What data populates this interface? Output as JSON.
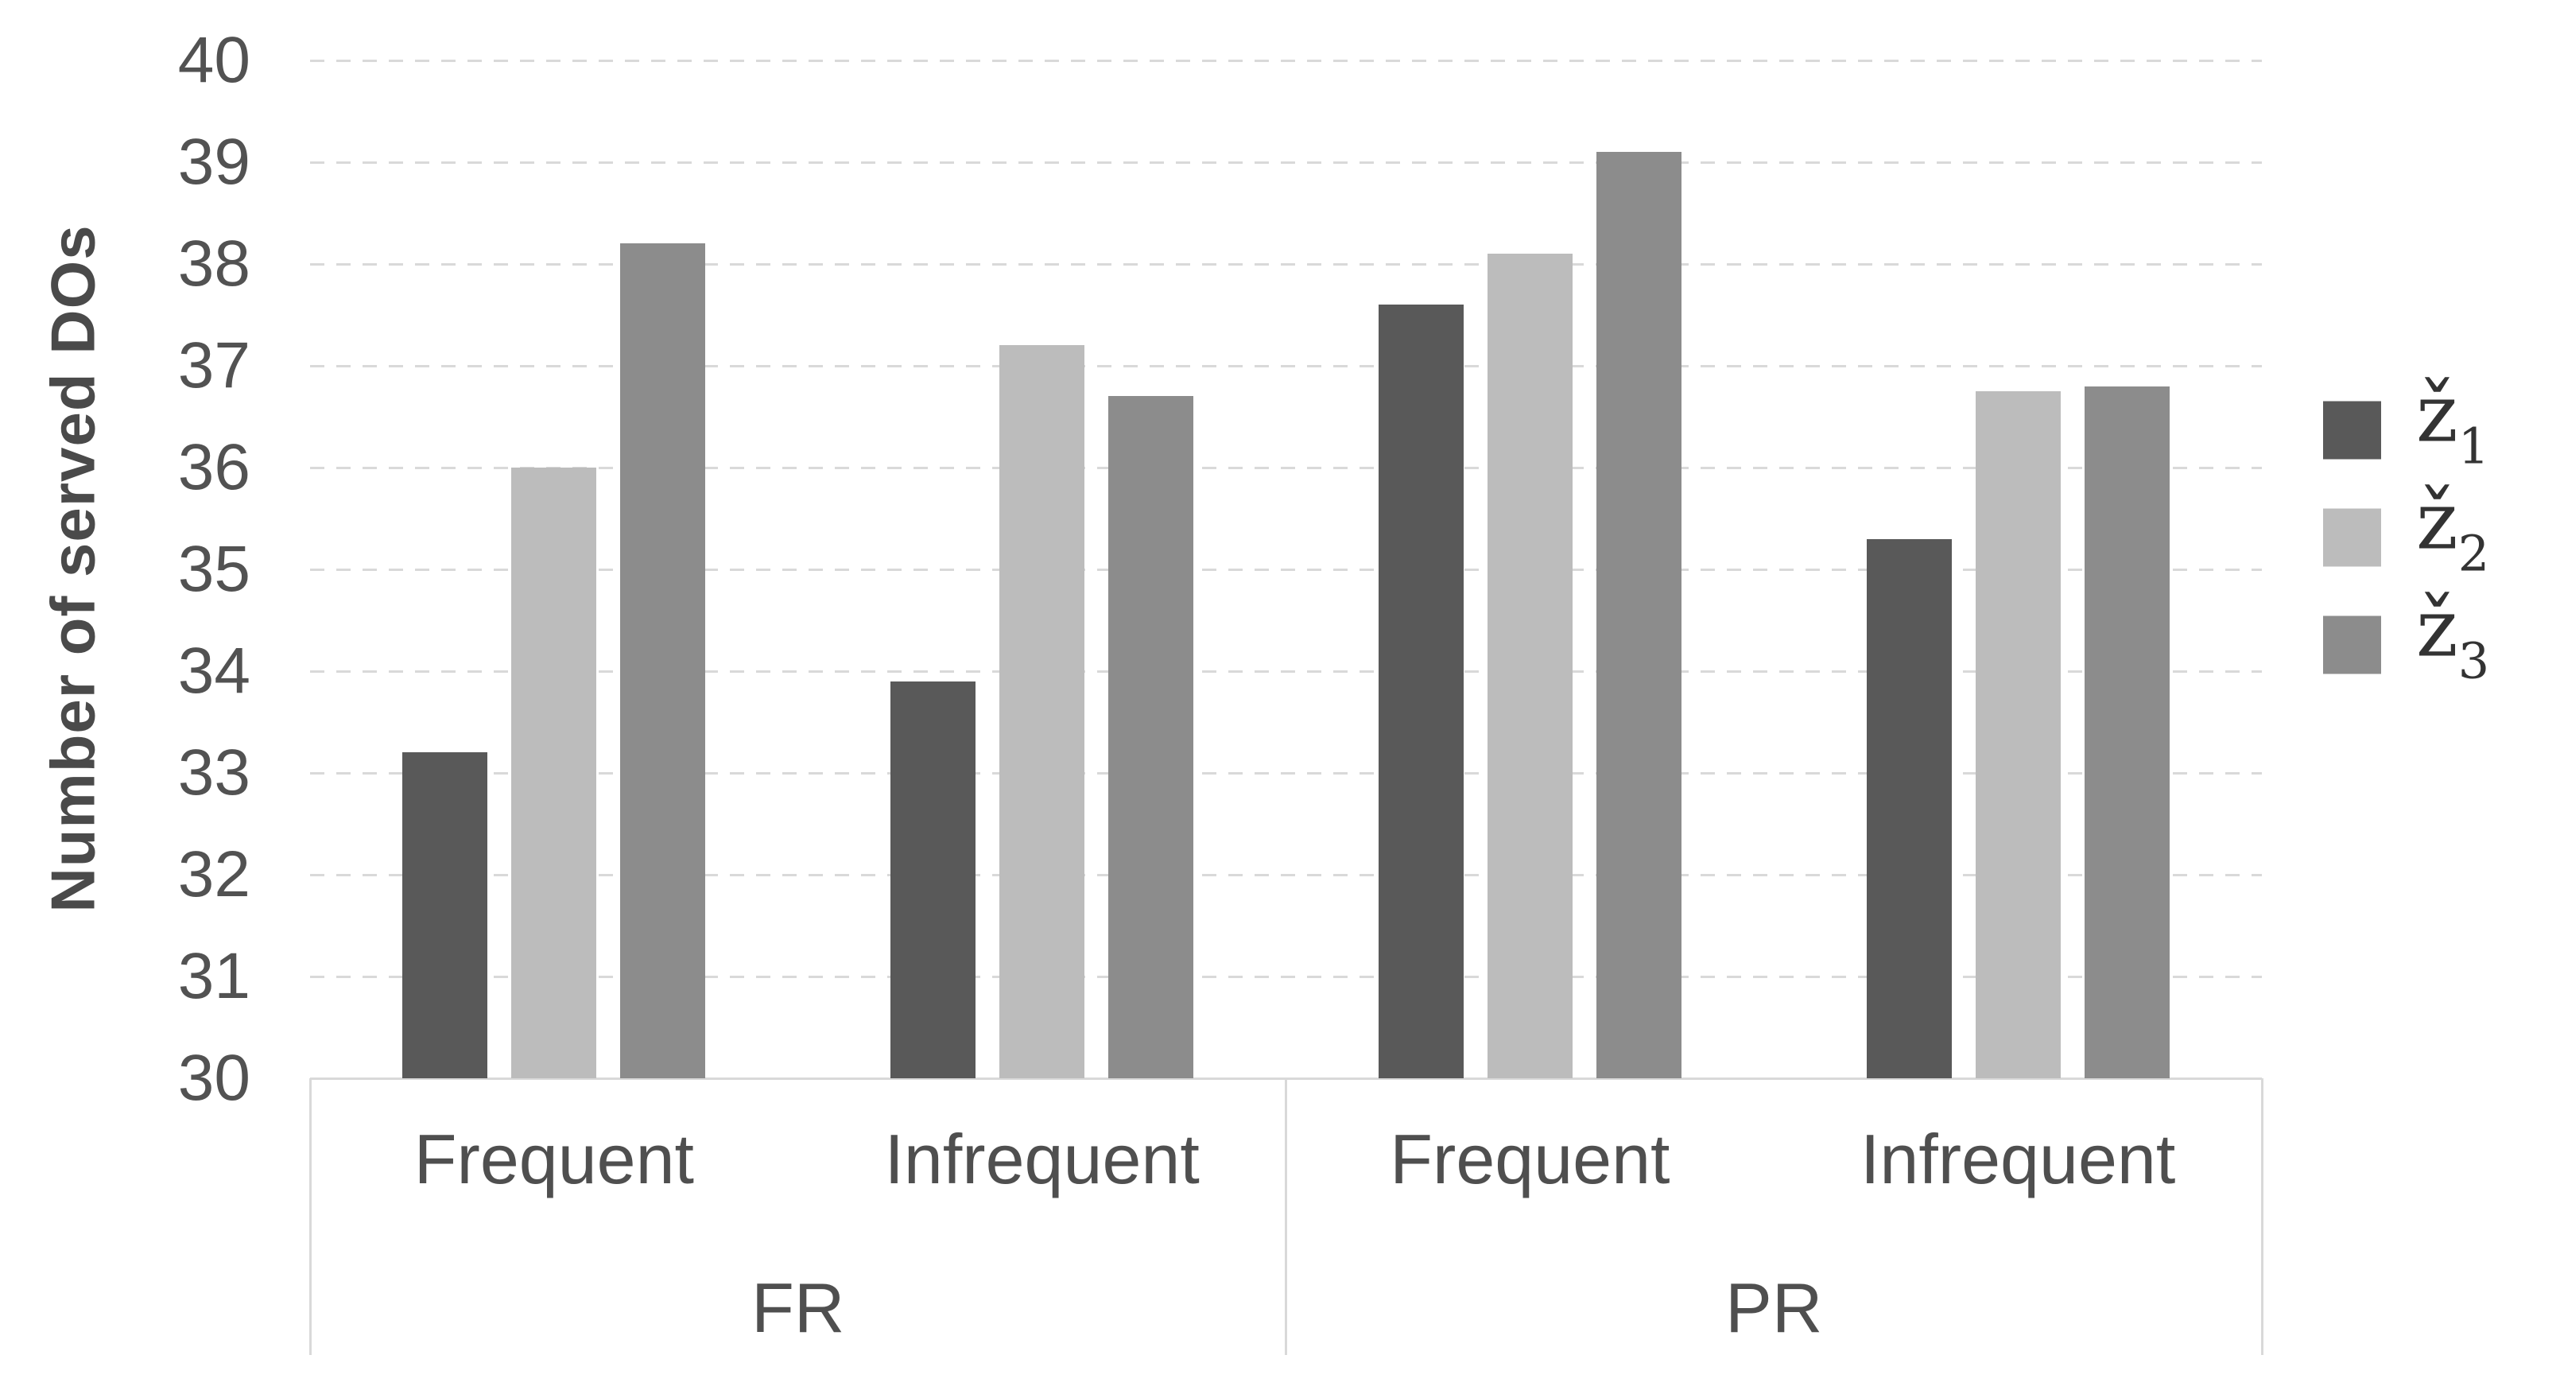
{
  "chart_data": {
    "type": "bar",
    "title": "",
    "ylabel": "Number of served DOs",
    "xlabel": "",
    "ylim": [
      30,
      40
    ],
    "yticks": [
      30,
      31,
      32,
      33,
      34,
      35,
      36,
      37,
      38,
      39,
      40
    ],
    "grid": "horizontal-dashed",
    "legend_position": "right",
    "groups": [
      {
        "label": "FR",
        "categories": [
          "Frequent",
          "Infrequent"
        ]
      },
      {
        "label": "PR",
        "categories": [
          "Frequent",
          "Infrequent"
        ]
      }
    ],
    "series": [
      {
        "base": "ž",
        "sub": "1",
        "color": "#595959",
        "values": [
          33.2,
          33.9,
          37.6,
          35.3
        ]
      },
      {
        "base": "ž",
        "sub": "2",
        "color": "#bcbcbc",
        "values": [
          36.0,
          37.2,
          38.1,
          36.75
        ]
      },
      {
        "base": "ž",
        "sub": "3",
        "color": "#8c8c8c",
        "values": [
          38.2,
          36.7,
          39.1,
          36.8
        ]
      }
    ],
    "colors": {
      "axis_line": "#d9d9d9",
      "gridline": "#d9d9d9",
      "tick_text": "#525252",
      "category_text": "#4f4f4f",
      "axis_title_text": "#4a4a4a",
      "legend_text": "#333333",
      "background": "#ffffff"
    }
  }
}
